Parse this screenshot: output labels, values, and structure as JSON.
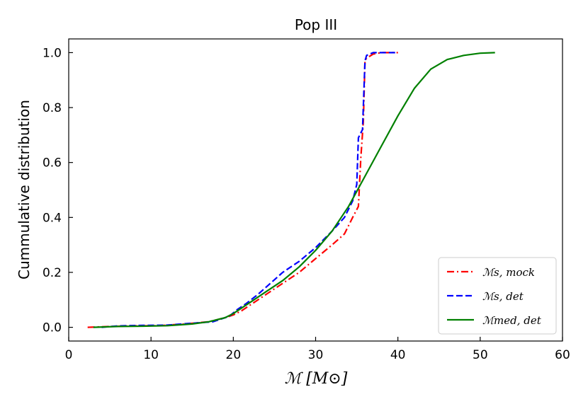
{
  "chart_data": {
    "type": "line",
    "title": "Pop III",
    "xlabel": "ℳ  [M⊙]",
    "ylabel": "Cummulative distribution",
    "xlim": [
      0,
      60
    ],
    "ylim": [
      -0.05,
      1.05
    ],
    "xticks": [
      0,
      10,
      20,
      30,
      40,
      50,
      60
    ],
    "yticks": [
      0.0,
      0.2,
      0.4,
      0.6,
      0.8,
      1.0
    ],
    "xtick_labels": [
      "0",
      "10",
      "20",
      "30",
      "40",
      "50",
      "60"
    ],
    "ytick_labels": [
      "0.0",
      "0.2",
      "0.4",
      "0.6",
      "0.8",
      "1.0"
    ],
    "grid": false,
    "legend_position": "lower-right",
    "series": [
      {
        "name": "ℳs, mock",
        "color": "#ff0000",
        "style": "dashdot",
        "x": [
          2.3,
          5,
          8,
          11,
          14,
          17,
          19,
          20,
          21,
          22,
          24,
          26,
          28,
          30,
          32,
          33.5,
          34.5,
          35.2,
          35.5,
          35.8,
          36.0,
          36.2,
          37,
          38,
          40
        ],
        "y": [
          0.0,
          0.003,
          0.005,
          0.006,
          0.012,
          0.02,
          0.035,
          0.045,
          0.06,
          0.08,
          0.12,
          0.16,
          0.2,
          0.25,
          0.3,
          0.34,
          0.4,
          0.44,
          0.62,
          0.75,
          0.97,
          0.98,
          0.995,
          1.0,
          1.0
        ]
      },
      {
        "name": "ℳs, det",
        "color": "#0000ff",
        "style": "dashed",
        "x": [
          4,
          6,
          9,
          12,
          15,
          17.5,
          19.5,
          20.5,
          21.5,
          23,
          24.5,
          26,
          28,
          30,
          32,
          33.5,
          34.5,
          35.0,
          35.2,
          35.7,
          36.0,
          36.2,
          37,
          38,
          40
        ],
        "y": [
          0.0,
          0.005,
          0.007,
          0.008,
          0.015,
          0.02,
          0.04,
          0.065,
          0.085,
          0.12,
          0.16,
          0.2,
          0.24,
          0.29,
          0.35,
          0.4,
          0.46,
          0.52,
          0.69,
          0.72,
          0.97,
          0.99,
          1.0,
          1.0,
          1.0
        ]
      },
      {
        "name": "ℳmed, det",
        "color": "#008000",
        "style": "solid",
        "x": [
          3,
          6,
          9,
          12,
          15,
          17,
          19,
          20,
          22,
          24,
          26,
          28,
          30,
          32,
          34,
          36,
          38,
          40,
          42,
          44,
          46,
          48,
          50,
          51.8
        ],
        "y": [
          0.0,
          0.003,
          0.004,
          0.006,
          0.012,
          0.02,
          0.035,
          0.05,
          0.09,
          0.13,
          0.17,
          0.22,
          0.28,
          0.35,
          0.44,
          0.55,
          0.66,
          0.77,
          0.87,
          0.94,
          0.975,
          0.99,
          0.998,
          1.0
        ]
      }
    ]
  }
}
